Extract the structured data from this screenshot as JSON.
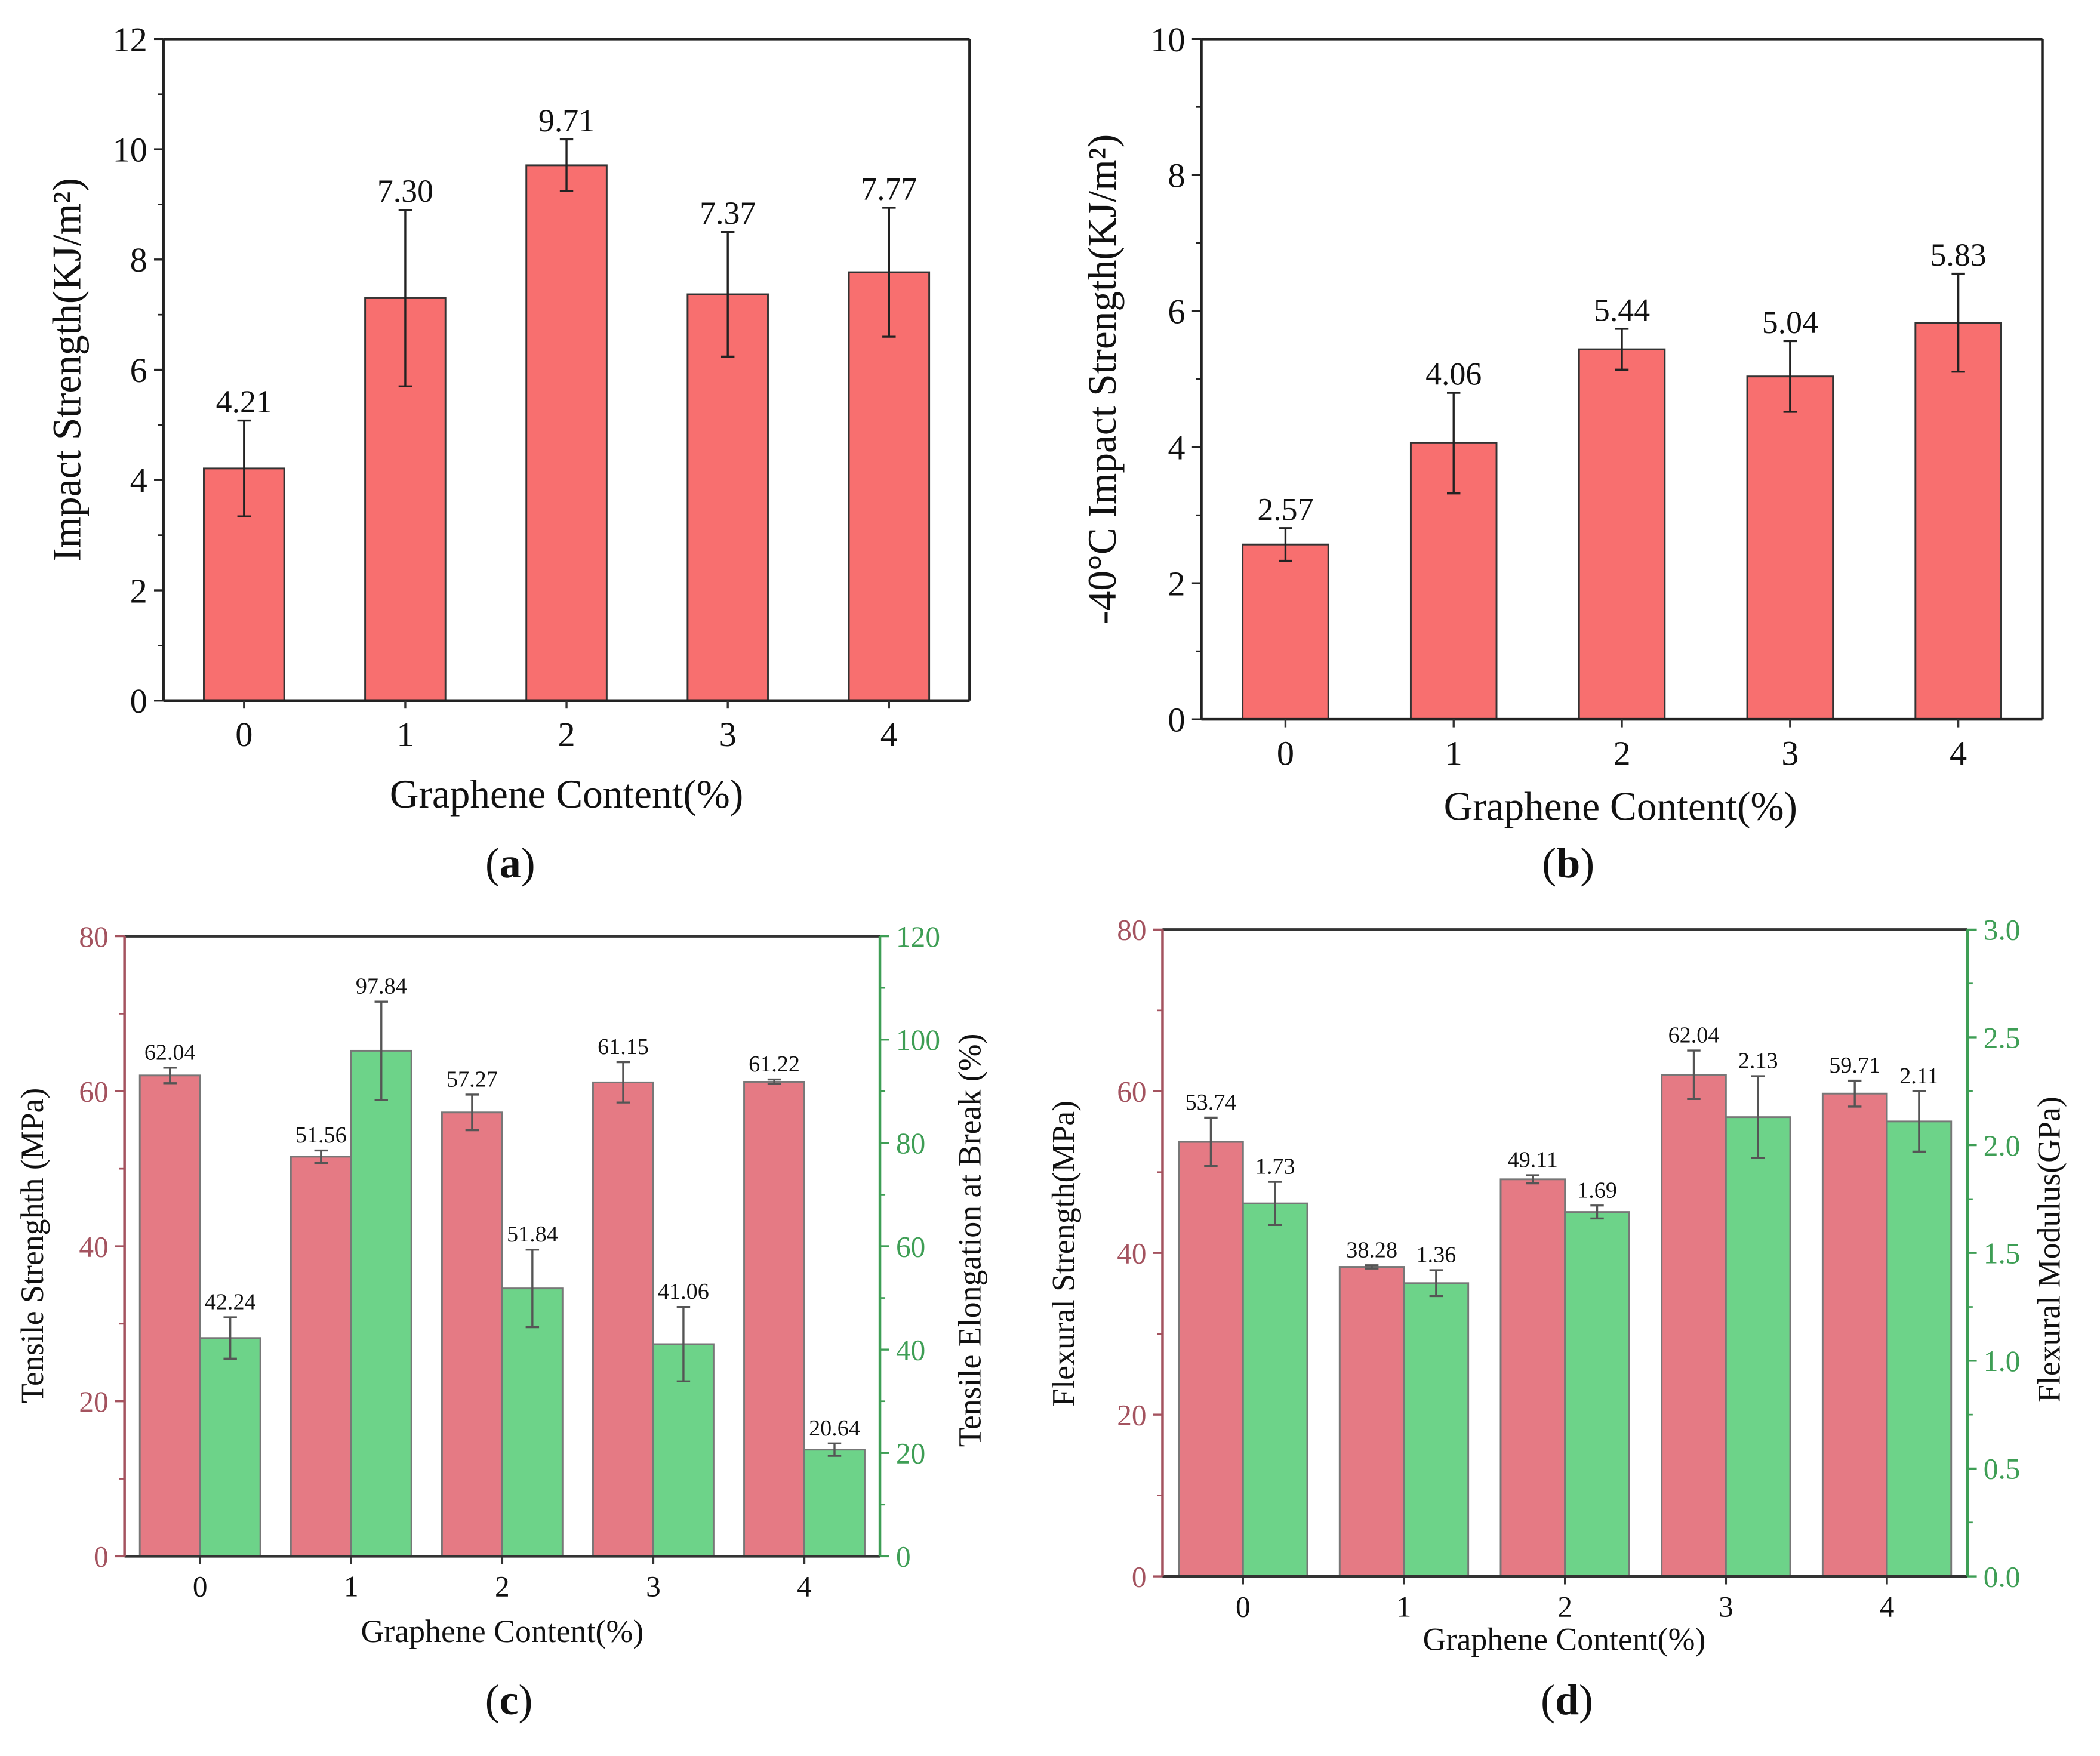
{
  "chart_data": [
    {
      "panel": "a",
      "type": "bar",
      "xlabel": "Graphene Content(%)",
      "ylabel": "Impact Strength(KJ/m²)",
      "ylim": [
        0,
        12
      ],
      "yticks": [
        "0",
        "2",
        "4",
        "6",
        "8",
        "10",
        "12"
      ],
      "categories": [
        "0",
        "1",
        "2",
        "3",
        "4"
      ],
      "colors": {
        "series0": "#F86F6F"
      },
      "series": [
        {
          "name": "Impact Strength",
          "axis": "left",
          "values": [
            4.21,
            7.3,
            9.71,
            7.37,
            7.77
          ],
          "errors": [
            0.87,
            1.6,
            0.47,
            1.13,
            1.17
          ],
          "labels": [
            "4.21",
            "7.30",
            "9.71",
            "7.37",
            "7.77"
          ]
        }
      ]
    },
    {
      "panel": "b",
      "type": "bar",
      "xlabel": "Graphene Content(%)",
      "ylabel": "-40°C Impact Strength(KJ/m²)",
      "ylim": [
        0,
        10
      ],
      "yticks": [
        "0",
        "2",
        "4",
        "6",
        "8",
        "10"
      ],
      "categories": [
        "0",
        "1",
        "2",
        "3",
        "4"
      ],
      "colors": {
        "series0": "#F86F6F"
      },
      "series": [
        {
          "name": "-40°C Impact Strength",
          "axis": "left",
          "values": [
            2.57,
            4.06,
            5.44,
            5.04,
            5.83
          ],
          "errors": [
            0.24,
            0.74,
            0.3,
            0.52,
            0.72
          ],
          "labels": [
            "2.57",
            "4.06",
            "5.44",
            "5.04",
            "5.83"
          ]
        }
      ]
    },
    {
      "panel": "c",
      "type": "bar",
      "xlabel": "Graphene Content(%)",
      "ylabel": "Tensile Strenghth (MPa)",
      "y2label": "Tensile Elongation at Break (%)",
      "ylim": [
        0,
        80
      ],
      "yticks": [
        "0",
        "20",
        "40",
        "60",
        "80"
      ],
      "y2lim": [
        0,
        120
      ],
      "y2ticks": [
        "0",
        "20",
        "40",
        "60",
        "80",
        "100",
        "120"
      ],
      "categories": [
        "0",
        "1",
        "2",
        "3",
        "4"
      ],
      "colors": {
        "series0": "#E57A84",
        "series1": "#6DD389",
        "left_axis": "#A4535F",
        "right_axis": "#3E9E55"
      },
      "series": [
        {
          "name": "Tensile Strength",
          "axis": "left",
          "values": [
            62.04,
            51.56,
            57.27,
            61.15,
            61.22
          ],
          "errors": [
            1.0,
            0.8,
            2.3,
            2.6,
            0.3
          ],
          "labels": [
            "62.04",
            "51.56",
            "57.27",
            "61.15",
            "61.22"
          ]
        },
        {
          "name": "Tensile Elongation at Break",
          "axis": "right",
          "values": [
            42.24,
            97.84,
            51.84,
            41.06,
            20.64
          ],
          "errors": [
            4.0,
            9.5,
            7.5,
            7.2,
            1.2
          ],
          "labels": [
            "42.24",
            "97.84",
            "51.84",
            "41.06",
            "20.64"
          ]
        }
      ]
    },
    {
      "panel": "d",
      "type": "bar",
      "xlabel": "Graphene Content(%)",
      "ylabel": "Flexural Strength(MPa)",
      "y2label": "Flexural Modulus(GPa)",
      "ylim": [
        0,
        80
      ],
      "yticks": [
        "0",
        "20",
        "40",
        "60",
        "80"
      ],
      "y2lim": [
        0,
        3
      ],
      "y2ticks": [
        "0.0",
        "0.5",
        "1.0",
        "1.5",
        "2.0",
        "2.5",
        "3.0"
      ],
      "categories": [
        "0",
        "1",
        "2",
        "3",
        "4"
      ],
      "colors": {
        "series0": "#E57A84",
        "series1": "#6DD389",
        "left_axis": "#A4535F",
        "right_axis": "#3E9E55"
      },
      "series": [
        {
          "name": "Flexural Strength",
          "axis": "left",
          "values": [
            53.74,
            38.28,
            49.11,
            62.04,
            59.71
          ],
          "errors": [
            3.0,
            0.2,
            0.5,
            3.0,
            1.6
          ],
          "labels": [
            "53.74",
            "38.28",
            "49.11",
            "62.04",
            "59.71"
          ]
        },
        {
          "name": "Flexural Modulus",
          "axis": "right",
          "values": [
            1.73,
            1.36,
            1.69,
            2.13,
            2.11
          ],
          "errors": [
            0.1,
            0.06,
            0.03,
            0.19,
            0.14
          ],
          "labels": [
            "1.73",
            "1.36",
            "1.69",
            "2.13",
            "2.11"
          ]
        }
      ]
    }
  ]
}
